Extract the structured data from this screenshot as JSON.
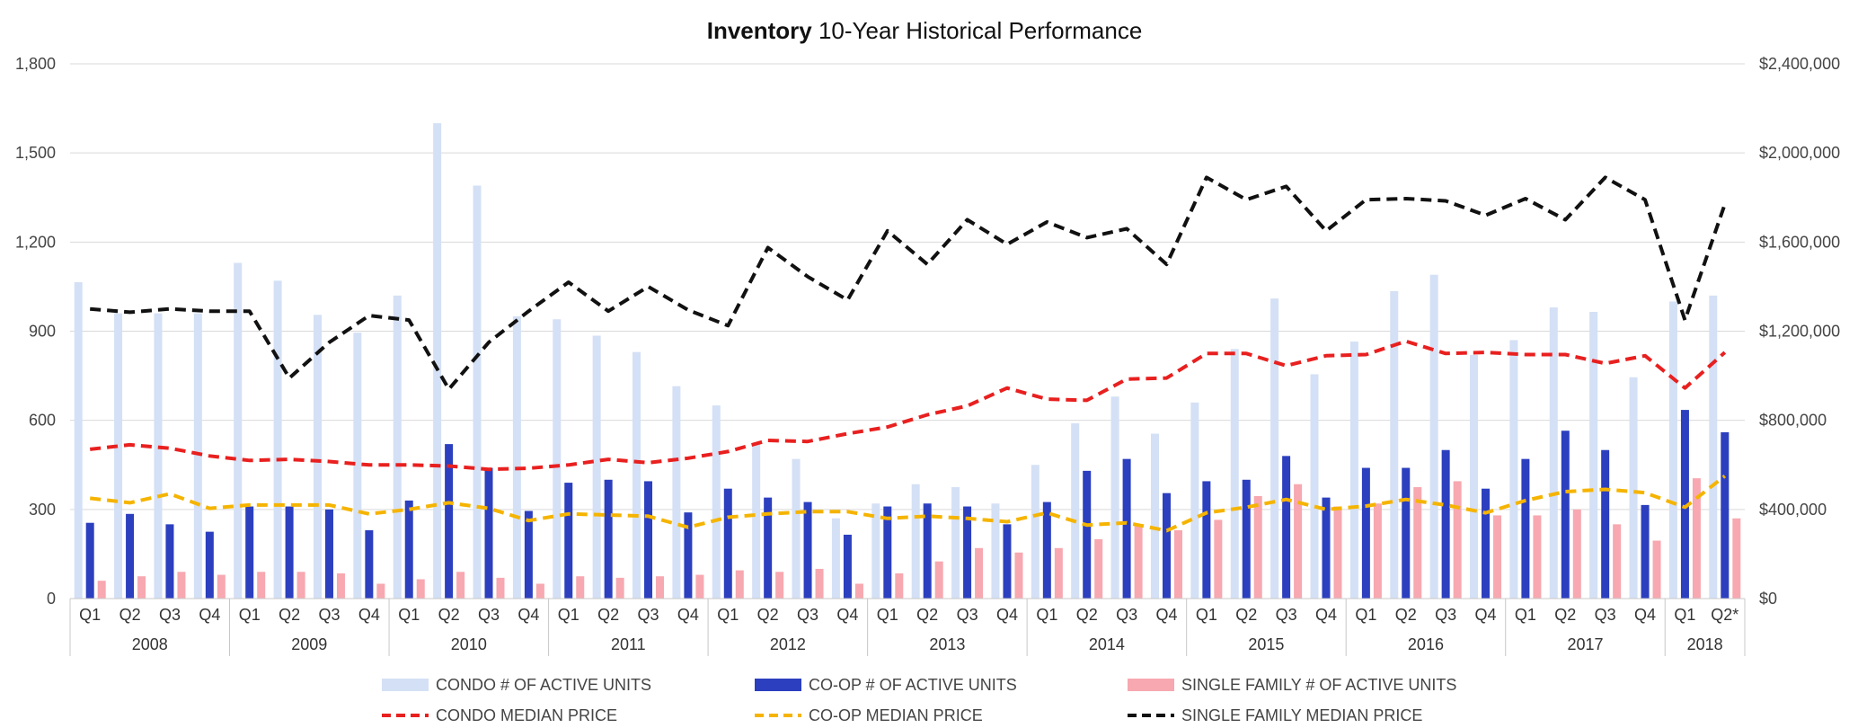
{
  "title": {
    "bold": "Inventory",
    "rest": " 10-Year Historical Performance"
  },
  "colors": {
    "condo_units": "#d4e0f5",
    "coop_units": "#2b3fbf",
    "sf_units": "#f7a8b0",
    "condo_price": "#e8201f",
    "coop_price": "#f5b400",
    "sf_price": "#111111"
  },
  "chart_data": {
    "type": "bar",
    "title": "Inventory 10-Year Historical Performance",
    "left_axis": {
      "min": 0,
      "max": 1800,
      "ticks": [
        "0",
        "300",
        "600",
        "900",
        "1,200",
        "1,500",
        "1,800"
      ],
      "tick_values": [
        0,
        300,
        600,
        900,
        1200,
        1500,
        1800
      ]
    },
    "right_axis": {
      "min": 0,
      "max": 2400000,
      "ticks": [
        "$0",
        "$400,000",
        "$800,000",
        "$1,200,000",
        "$1,600,000",
        "$2,000,000",
        "$2,400,000"
      ],
      "tick_values": [
        0,
        400000,
        800000,
        1200000,
        1600000,
        2000000,
        2400000
      ]
    },
    "quarters": [
      "Q1",
      "Q2",
      "Q3",
      "Q4",
      "Q1",
      "Q2",
      "Q3",
      "Q4",
      "Q1",
      "Q2",
      "Q3",
      "Q4",
      "Q1",
      "Q2",
      "Q3",
      "Q4",
      "Q1",
      "Q2",
      "Q3",
      "Q4",
      "Q1",
      "Q2",
      "Q3",
      "Q4",
      "Q1",
      "Q2",
      "Q3",
      "Q4",
      "Q1",
      "Q2",
      "Q3",
      "Q4",
      "Q1",
      "Q2",
      "Q3",
      "Q4",
      "Q1",
      "Q2",
      "Q3",
      "Q4",
      "Q1",
      "Q2*"
    ],
    "years": [
      {
        "label": "2008",
        "count": 4
      },
      {
        "label": "2009",
        "count": 4
      },
      {
        "label": "2010",
        "count": 4
      },
      {
        "label": "2011",
        "count": 4
      },
      {
        "label": "2012",
        "count": 4
      },
      {
        "label": "2013",
        "count": 4
      },
      {
        "label": "2014",
        "count": 4
      },
      {
        "label": "2015",
        "count": 4
      },
      {
        "label": "2016",
        "count": 4
      },
      {
        "label": "2017",
        "count": 4
      },
      {
        "label": "2018",
        "count": 2
      }
    ],
    "series": [
      {
        "name": "CONDO # OF ACTIVE UNITS",
        "kind": "bar",
        "axis": "left",
        "color_key": "condo_units",
        "values": [
          1065,
          960,
          960,
          960,
          1130,
          1070,
          955,
          895,
          1020,
          1600,
          1390,
          950,
          940,
          885,
          830,
          715,
          650,
          520,
          470,
          270,
          320,
          385,
          375,
          320,
          450,
          590,
          680,
          555,
          660,
          840,
          1010,
          755,
          865,
          1035,
          1090,
          820,
          870,
          980,
          965,
          745,
          1000,
          1020
        ]
      },
      {
        "name": "CO-OP # OF ACTIVE UNITS",
        "kind": "bar",
        "axis": "left",
        "color_key": "coop_units",
        "values": [
          255,
          285,
          250,
          225,
          310,
          310,
          300,
          230,
          330,
          520,
          440,
          295,
          390,
          400,
          395,
          290,
          370,
          340,
          325,
          215,
          310,
          320,
          310,
          250,
          325,
          430,
          470,
          355,
          395,
          400,
          480,
          340,
          440,
          440,
          500,
          370,
          470,
          565,
          500,
          315,
          635,
          560
        ]
      },
      {
        "name": "SINGLE FAMILY # OF ACTIVE UNITS",
        "kind": "bar",
        "axis": "left",
        "color_key": "sf_units",
        "values": [
          60,
          75,
          90,
          80,
          90,
          90,
          85,
          50,
          65,
          90,
          70,
          50,
          75,
          70,
          75,
          80,
          95,
          90,
          100,
          50,
          85,
          125,
          170,
          155,
          170,
          200,
          250,
          230,
          265,
          345,
          385,
          310,
          320,
          375,
          395,
          280,
          280,
          300,
          250,
          195,
          405,
          270
        ]
      },
      {
        "name": "CONDO MEDIAN PRICE",
        "kind": "line",
        "axis": "right",
        "color_key": "condo_price",
        "values": [
          670000,
          690000,
          675000,
          640000,
          620000,
          625000,
          615000,
          600000,
          600000,
          595000,
          580000,
          585000,
          600000,
          625000,
          610000,
          630000,
          660000,
          710000,
          705000,
          740000,
          770000,
          825000,
          865000,
          945000,
          895000,
          890000,
          985000,
          990000,
          1100000,
          1100000,
          1045000,
          1090000,
          1095000,
          1155000,
          1100000,
          1105000,
          1095000,
          1095000,
          1055000,
          1090000,
          945000,
          1105000
        ]
      },
      {
        "name": "CO-OP MEDIAN PRICE",
        "kind": "line",
        "axis": "right",
        "color_key": "coop_price",
        "values": [
          450000,
          430000,
          470000,
          405000,
          420000,
          420000,
          420000,
          380000,
          400000,
          430000,
          405000,
          350000,
          380000,
          375000,
          370000,
          320000,
          365000,
          380000,
          390000,
          390000,
          360000,
          370000,
          360000,
          345000,
          385000,
          330000,
          340000,
          305000,
          385000,
          410000,
          445000,
          400000,
          415000,
          445000,
          420000,
          385000,
          440000,
          480000,
          490000,
          475000,
          410000,
          550000
        ]
      },
      {
        "name": "SINGLE FAMILY MEDIAN PRICE",
        "kind": "line",
        "axis": "right",
        "color_key": "sf_price",
        "values": [
          1300000,
          1285000,
          1300000,
          1290000,
          1290000,
          990000,
          1150000,
          1270000,
          1250000,
          940000,
          1150000,
          1290000,
          1420000,
          1290000,
          1400000,
          1295000,
          1225000,
          1575000,
          1445000,
          1340000,
          1650000,
          1500000,
          1700000,
          1590000,
          1690000,
          1620000,
          1660000,
          1500000,
          1890000,
          1790000,
          1850000,
          1650000,
          1790000,
          1795000,
          1785000,
          1720000,
          1795000,
          1700000,
          1890000,
          1790000,
          1250000,
          1770000
        ]
      }
    ]
  }
}
